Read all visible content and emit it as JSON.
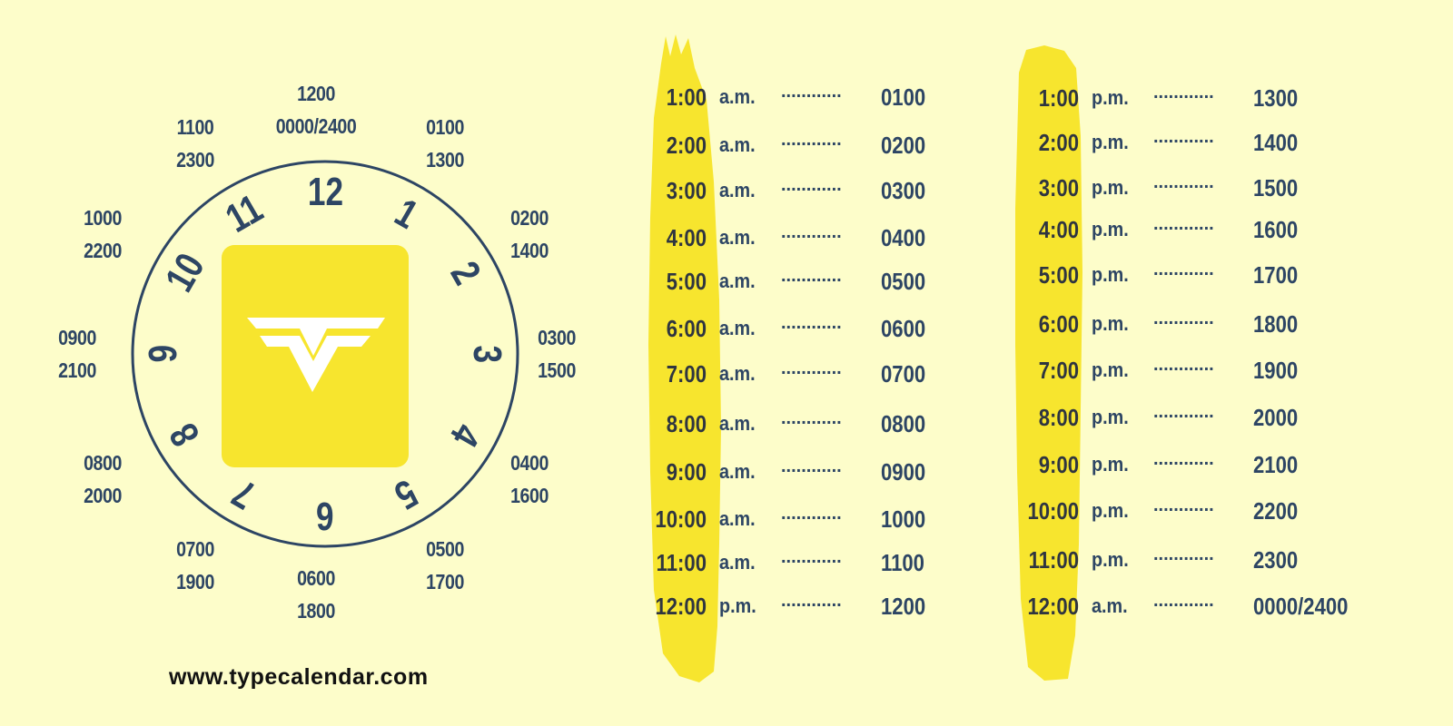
{
  "colors": {
    "background": "#fdfdca",
    "text": "#2d4564",
    "accent_yellow": "#f7e52e",
    "logo_white": "#ffffff"
  },
  "clock": {
    "numbers": [
      "12",
      "1",
      "2",
      "3",
      "4",
      "5",
      "6",
      "7",
      "8",
      "9",
      "10",
      "11"
    ],
    "labels": [
      {
        "a": "1200",
        "b": "0000/2400"
      },
      {
        "a": "0100",
        "b": "1300"
      },
      {
        "a": "0200",
        "b": "1400"
      },
      {
        "a": "0300",
        "b": "1500"
      },
      {
        "a": "0400",
        "b": "1600"
      },
      {
        "a": "0500",
        "b": "1700"
      },
      {
        "a": "0600",
        "b": "1800"
      },
      {
        "a": "0700",
        "b": "1900"
      },
      {
        "a": "0800",
        "b": "2000"
      },
      {
        "a": "0900",
        "b": "2100"
      },
      {
        "a": "1000",
        "b": "2200"
      },
      {
        "a": "1100",
        "b": "2300"
      }
    ],
    "logo_icon": "typecalendar-v-logo-icon"
  },
  "am_table": [
    {
      "time": "1:00",
      "period": "a.m.",
      "dots": "............",
      "value": "0100"
    },
    {
      "time": "2:00",
      "period": "a.m.",
      "dots": "............",
      "value": "0200"
    },
    {
      "time": "3:00",
      "period": "a.m.",
      "dots": "............",
      "value": "0300"
    },
    {
      "time": "4:00",
      "period": "a.m.",
      "dots": "............",
      "value": "0400"
    },
    {
      "time": "5:00",
      "period": "a.m.",
      "dots": "............",
      "value": "0500"
    },
    {
      "time": "6:00",
      "period": "a.m.",
      "dots": "............",
      "value": "0600"
    },
    {
      "time": "7:00",
      "period": "a.m.",
      "dots": "............",
      "value": "0700"
    },
    {
      "time": "8:00",
      "period": "a.m.",
      "dots": "............",
      "value": "0800"
    },
    {
      "time": "9:00",
      "period": "a.m.",
      "dots": "............",
      "value": "0900"
    },
    {
      "time": "10:00",
      "period": "a.m.",
      "dots": "............",
      "value": "1000"
    },
    {
      "time": "11:00",
      "period": "a.m.",
      "dots": "............",
      "value": "1100"
    },
    {
      "time": "12:00",
      "period": "p.m.",
      "dots": "............",
      "value": "1200"
    }
  ],
  "pm_table": [
    {
      "time": "1:00",
      "period": "p.m.",
      "dots": "............",
      "value": "1300"
    },
    {
      "time": "2:00",
      "period": "p.m.",
      "dots": "............",
      "value": "1400"
    },
    {
      "time": "3:00",
      "period": "p.m.",
      "dots": "............",
      "value": "1500"
    },
    {
      "time": "4:00",
      "period": "p.m.",
      "dots": "............",
      "value": "1600"
    },
    {
      "time": "5:00",
      "period": "p.m.",
      "dots": "............",
      "value": "1700"
    },
    {
      "time": "6:00",
      "period": "p.m.",
      "dots": "............",
      "value": "1800"
    },
    {
      "time": "7:00",
      "period": "p.m.",
      "dots": "............",
      "value": "1900"
    },
    {
      "time": "8:00",
      "period": "p.m.",
      "dots": "............",
      "value": "2000"
    },
    {
      "time": "9:00",
      "period": "p.m.",
      "dots": "............",
      "value": "2100"
    },
    {
      "time": "10:00",
      "period": "p.m.",
      "dots": "............",
      "value": "2200"
    },
    {
      "time": "11:00",
      "period": "p.m.",
      "dots": "............",
      "value": "2300"
    },
    {
      "time": "12:00",
      "period": "a.m.",
      "dots": "............",
      "value": "0000/2400"
    }
  ],
  "footer": {
    "url": "www.typecalendar.com"
  }
}
